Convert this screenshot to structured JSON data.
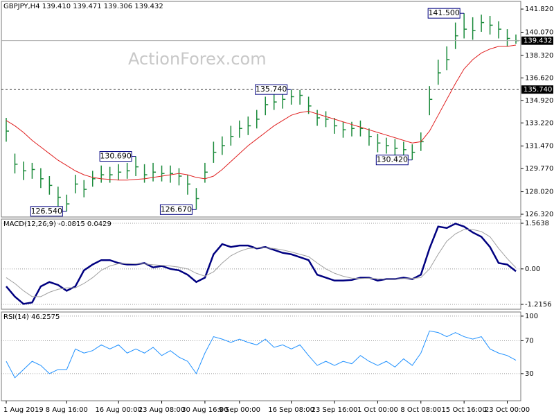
{
  "chart_data": [
    {
      "type": "ohlc",
      "title": "GBPJPY,H4  139.410 139.471 139.306 139.432",
      "watermark": "ActionForex.com",
      "categories": [
        "1 Aug 2019",
        null,
        null,
        null,
        null,
        null,
        null,
        "8 Aug 16:00",
        null,
        null,
        null,
        null,
        null,
        "16 Aug 00:00",
        null,
        null,
        null,
        null,
        "23 Aug 08:00",
        null,
        null,
        null,
        null,
        "30 Aug 16:00",
        null,
        null,
        null,
        "9 Sep 00:00",
        null,
        null,
        null,
        null,
        null,
        "16 Sep 08:00",
        null,
        null,
        null,
        null,
        "23 Sep 16:00",
        null,
        null,
        null,
        null,
        "1 Oct 00:00",
        null,
        null,
        null,
        null,
        "8 Oct 08:00",
        null,
        null,
        null,
        null,
        "15 Oct 16:00",
        null,
        null,
        null,
        null,
        "23 Oct 00:00",
        null
      ],
      "ohlc": {
        "color": "#1a8a3a",
        "high": [
          133.6,
          130.9,
          130.3,
          130.2,
          129.8,
          129.2,
          128.4,
          127.8,
          129.3,
          128.9,
          129.6,
          130.0,
          129.9,
          130.1,
          130.2,
          130.69,
          130.1,
          130.2,
          130.0,
          130.0,
          129.8,
          129.3,
          128.3,
          130.2,
          131.8,
          132.2,
          133.0,
          133.4,
          133.7,
          134.2,
          135.2,
          135.5,
          135.6,
          135.74,
          135.7,
          135.2,
          134.2,
          134.1,
          133.6,
          133.3,
          133.3,
          133.4,
          132.8,
          132.4,
          132.1,
          132.0,
          131.8,
          131.6,
          132.5,
          136.0,
          138.0,
          139.0,
          140.8,
          141.5,
          141.2,
          141.4,
          141.3,
          140.9,
          140.3,
          139.9
        ],
        "low": [
          131.8,
          129.4,
          128.9,
          129.0,
          128.3,
          127.8,
          126.9,
          126.54,
          127.9,
          127.6,
          128.4,
          128.7,
          128.7,
          128.9,
          129.0,
          129.2,
          128.7,
          128.8,
          128.8,
          128.7,
          128.5,
          127.8,
          126.67,
          128.7,
          130.2,
          130.8,
          131.5,
          132.1,
          132.3,
          132.8,
          133.8,
          134.2,
          134.3,
          134.6,
          134.6,
          133.9,
          133.0,
          132.9,
          132.4,
          132.1,
          132.2,
          132.2,
          131.5,
          131.0,
          130.9,
          130.7,
          130.6,
          130.42,
          131.1,
          133.8,
          136.1,
          137.2,
          138.8,
          139.6,
          139.5,
          140.1,
          139.9,
          139.6,
          139.0,
          139.2
        ],
        "close": [
          132.6,
          130.1,
          129.6,
          129.7,
          129.0,
          128.5,
          127.6,
          127.1,
          128.6,
          128.2,
          129.0,
          129.3,
          129.3,
          129.5,
          129.6,
          129.9,
          129.3,
          129.5,
          129.4,
          129.4,
          129.2,
          128.6,
          127.5,
          129.5,
          131.0,
          131.5,
          132.2,
          132.8,
          133.0,
          133.5,
          134.6,
          134.8,
          135.0,
          135.2,
          135.3,
          134.5,
          133.6,
          133.5,
          133.0,
          132.7,
          132.8,
          132.8,
          132.2,
          131.7,
          131.5,
          131.3,
          131.2,
          131.0,
          131.8,
          135.0,
          137.0,
          138.0,
          139.8,
          140.3,
          140.2,
          140.8,
          140.6,
          140.3,
          139.6,
          139.432
        ]
      },
      "ma": {
        "color": "#e02020",
        "values": [
          133.4,
          133.0,
          132.5,
          131.9,
          131.4,
          130.9,
          130.4,
          130.0,
          129.6,
          129.3,
          129.1,
          129.0,
          128.95,
          128.9,
          128.9,
          128.95,
          129.0,
          129.1,
          129.2,
          129.3,
          129.4,
          129.3,
          129.1,
          129.0,
          129.2,
          129.7,
          130.3,
          130.9,
          131.5,
          132.0,
          132.5,
          133.0,
          133.4,
          133.8,
          134.0,
          134.1,
          133.9,
          133.7,
          133.5,
          133.3,
          133.1,
          132.9,
          132.7,
          132.5,
          132.3,
          132.1,
          131.9,
          131.7,
          131.8,
          132.6,
          133.8,
          135.0,
          136.2,
          137.3,
          138.0,
          138.5,
          138.8,
          139.0,
          139.0,
          139.1
        ]
      },
      "annotations": [
        {
          "text": "141.500",
          "value": 141.5,
          "index": 53
        },
        {
          "text": "135.740",
          "value": 135.74,
          "index": 33
        },
        {
          "text": "130.690",
          "value": 130.69,
          "index": 15
        },
        {
          "text": "130.420",
          "value": 130.42,
          "index": 47
        },
        {
          "text": "126.540",
          "value": 126.54,
          "index": 7
        },
        {
          "text": "126.670",
          "value": 126.67,
          "index": 22
        }
      ],
      "price_lines": [
        {
          "value": 139.432,
          "label": "139.432",
          "style": "solid"
        },
        {
          "value": 135.74,
          "label": "135.740",
          "style": "dashed"
        }
      ],
      "ylim": [
        126.11,
        142.4
      ],
      "yticks": [
        {
          "value": 141.82,
          "label": "141.820"
        },
        {
          "value": 140.07,
          "label": "140.070"
        },
        {
          "value": 138.32,
          "label": "138.320"
        },
        {
          "value": 136.62,
          "label": "136.620"
        },
        {
          "value": 134.92,
          "label": "134.920"
        },
        {
          "value": 133.22,
          "label": "133.220"
        },
        {
          "value": 131.47,
          "label": "131.470"
        },
        {
          "value": 129.77,
          "label": "129.770"
        },
        {
          "value": 128.02,
          "label": "128.020"
        },
        {
          "value": 126.32,
          "label": "126.320"
        }
      ],
      "grid": false
    },
    {
      "type": "line",
      "title": "MACD(12,26,9) -0.0815 0.0429",
      "series": [
        {
          "color": "#000080",
          "values": [
            -0.6,
            -0.95,
            -1.2,
            -1.15,
            -0.6,
            -0.45,
            -0.55,
            -0.75,
            -0.6,
            -0.05,
            0.15,
            0.3,
            0.3,
            0.2,
            0.15,
            0.15,
            0.2,
            0.05,
            0.1,
            0.0,
            -0.05,
            -0.2,
            -0.45,
            -0.3,
            0.5,
            0.85,
            0.75,
            0.8,
            0.8,
            0.7,
            0.75,
            0.65,
            0.55,
            0.5,
            0.4,
            0.3,
            -0.2,
            -0.3,
            -0.4,
            -0.4,
            -0.38,
            -0.3,
            -0.3,
            -0.4,
            -0.35,
            -0.35,
            -0.3,
            -0.35,
            -0.2,
            0.7,
            1.45,
            1.4,
            1.55,
            1.45,
            1.25,
            1.1,
            0.75,
            0.2,
            0.15,
            -0.0815
          ]
        },
        {
          "color": "#a0a0a0",
          "values": [
            -0.3,
            -0.5,
            -0.75,
            -0.95,
            -0.95,
            -0.8,
            -0.7,
            -0.65,
            -0.65,
            -0.5,
            -0.3,
            -0.05,
            0.1,
            0.18,
            0.18,
            0.17,
            0.17,
            0.14,
            0.12,
            0.1,
            0.06,
            0.0,
            -0.15,
            -0.25,
            -0.1,
            0.2,
            0.45,
            0.6,
            0.7,
            0.72,
            0.72,
            0.7,
            0.65,
            0.58,
            0.5,
            0.42,
            0.2,
            0.0,
            -0.15,
            -0.25,
            -0.32,
            -0.33,
            -0.32,
            -0.34,
            -0.35,
            -0.35,
            -0.33,
            -0.33,
            -0.3,
            0.0,
            0.5,
            0.95,
            1.2,
            1.35,
            1.35,
            1.28,
            1.1,
            0.7,
            0.35,
            0.0429
          ]
        }
      ],
      "ylim": [
        -1.382,
        1.706
      ],
      "yticks": [
        {
          "value": 1.5638,
          "label": "1.5638"
        },
        {
          "value": 0,
          "label": "0.00"
        },
        {
          "value": -1.2156,
          "label": "-1.2156"
        }
      ],
      "grid": true
    },
    {
      "type": "line",
      "title": "RSI(14) 46.2575",
      "series": [
        {
          "color": "#1e90ff",
          "values": [
            45,
            25,
            35,
            45,
            40,
            30,
            35,
            35,
            60,
            55,
            58,
            65,
            60,
            65,
            55,
            60,
            55,
            62,
            52,
            58,
            50,
            45,
            30,
            55,
            75,
            72,
            68,
            72,
            68,
            65,
            72,
            62,
            65,
            60,
            65,
            52,
            40,
            45,
            40,
            45,
            42,
            52,
            45,
            40,
            45,
            38,
            48,
            40,
            55,
            82,
            80,
            75,
            80,
            75,
            72,
            75,
            60,
            55,
            52,
            46.2575
          ]
        }
      ],
      "ylim": [
        -3,
        105
      ],
      "yticks": [
        100,
        70,
        30
      ],
      "grid": true
    }
  ]
}
